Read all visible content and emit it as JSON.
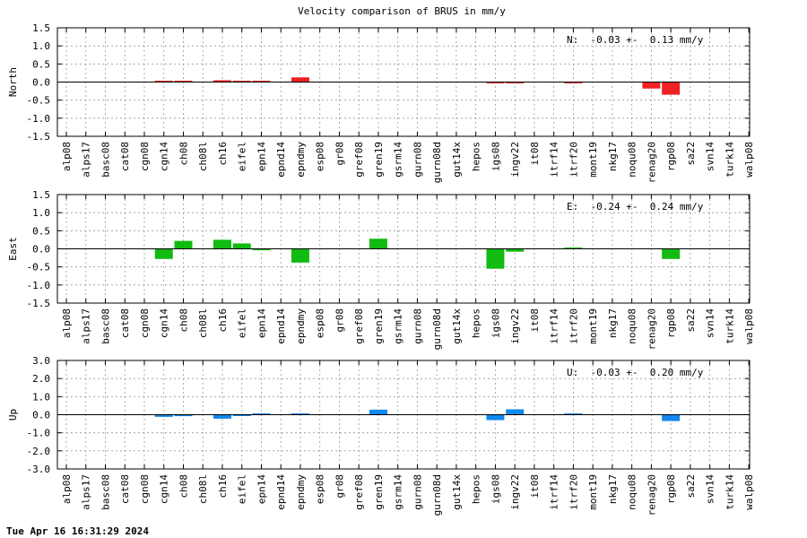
{
  "title": "Velocity comparison of BRUS in mm/y",
  "timestamp": "Tue Apr 16 16:31:29 2024",
  "categories": [
    "alp08",
    "alps17",
    "basc08",
    "cat08",
    "cgn08",
    "cgn14",
    "ch08",
    "ch08l",
    "ch16",
    "eifel",
    "epn14",
    "epnd14",
    "epndmy",
    "esp08",
    "gr08",
    "gref08",
    "gren19",
    "gsrm14",
    "gurn08",
    "gurn08d",
    "gut14x",
    "hepos",
    "igs08",
    "ingv22",
    "it08",
    "itrf14",
    "itrf20",
    "mont19",
    "nkg17",
    "noqu08",
    "renag20",
    "rgp08",
    "sa22",
    "svn14",
    "turk14",
    "walp08"
  ],
  "chart_data": [
    {
      "type": "bar",
      "ylabel": "North",
      "color": "#ee2222",
      "ylim": [
        -1.5,
        1.5
      ],
      "yticks": [
        "1.5",
        "1.0",
        "0.5",
        "0.0",
        "-0.5",
        "-1.0",
        "-1.5"
      ],
      "stat_label": "N:  -0.03 +-  0.13 mm/y",
      "grid": true,
      "values": [
        0,
        0,
        0,
        0,
        0,
        0.02,
        0.02,
        0,
        0.05,
        0.02,
        0.02,
        0,
        0.13,
        0,
        0,
        0,
        0,
        0,
        0,
        0,
        0,
        0,
        -0.03,
        -0.03,
        0,
        0,
        -0.03,
        0,
        0,
        0,
        -0.18,
        -0.35,
        0,
        0,
        0,
        0
      ]
    },
    {
      "type": "bar",
      "ylabel": "East",
      "color": "#11bb11",
      "ylim": [
        -1.5,
        1.5
      ],
      "yticks": [
        "1.5",
        "1.0",
        "0.5",
        "0.0",
        "-0.5",
        "-1.0",
        "-1.5"
      ],
      "stat_label": "E:  -0.24 +-  0.24 mm/y",
      "grid": true,
      "values": [
        0,
        0,
        0,
        0,
        0,
        -0.28,
        0.22,
        0,
        0.25,
        0.15,
        -0.04,
        0,
        -0.38,
        0,
        0,
        0,
        0.28,
        0,
        0,
        0,
        0,
        0,
        -0.55,
        -0.08,
        0,
        0,
        0.03,
        0,
        0,
        0,
        0,
        -0.28,
        0,
        0,
        0,
        0
      ]
    },
    {
      "type": "bar",
      "ylabel": "Up",
      "color": "#1188ee",
      "ylim": [
        -3.0,
        3.0
      ],
      "yticks": [
        "3.0",
        "2.0",
        "1.0",
        "0.0",
        "-1.0",
        "-2.0",
        "-3.0"
      ],
      "stat_label": "U:  -0.03 +-  0.20 mm/y",
      "grid": true,
      "values": [
        0,
        0,
        0,
        0,
        0,
        -0.12,
        -0.08,
        0,
        -0.22,
        -0.06,
        0.04,
        0,
        0.03,
        0,
        0,
        0,
        0.28,
        0,
        0,
        0,
        0,
        0,
        -0.3,
        0.3,
        0,
        0,
        0.03,
        0,
        0,
        0,
        0,
        -0.35,
        0,
        0,
        0,
        0
      ]
    }
  ]
}
